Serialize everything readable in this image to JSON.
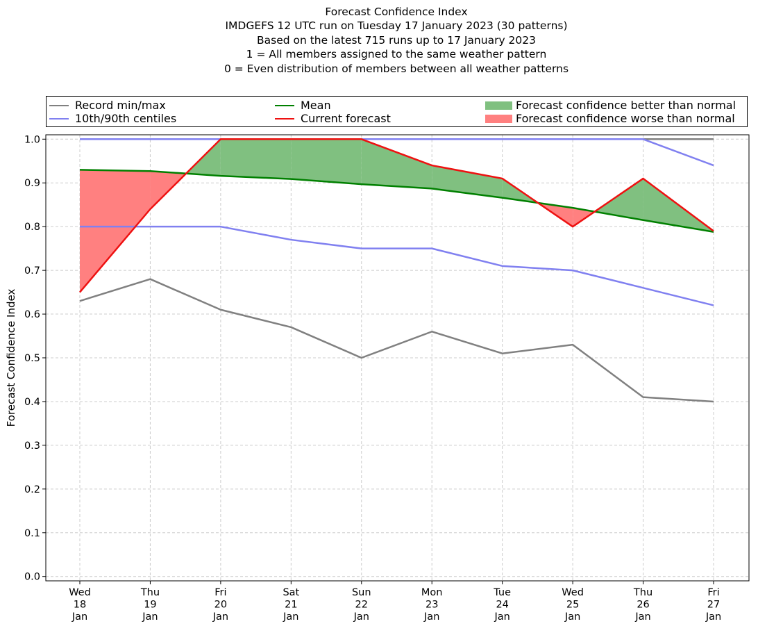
{
  "chart_data": {
    "type": "line",
    "title_lines": [
      "Forecast Confidence Index",
      "IMDGEFS 12 UTC run on Tuesday 17 January 2023 (30 patterns)",
      "Based on the latest 715 runs up to 17 January 2023",
      "1 = All members assigned to the same weather pattern",
      "0 = Even distribution of members between all weather patterns"
    ],
    "ylabel": "Forecast Confidence Index",
    "ylim": [
      -0.01,
      1.01
    ],
    "yticks": [
      "0.0",
      "0.1",
      "0.2",
      "0.3",
      "0.4",
      "0.5",
      "0.6",
      "0.7",
      "0.8",
      "0.9",
      "1.0"
    ],
    "grid": true,
    "legend_position": "top, above plot, 3 columns",
    "categories": [
      [
        "Wed",
        "18",
        "Jan"
      ],
      [
        "Thu",
        "19",
        "Jan"
      ],
      [
        "Fri",
        "20",
        "Jan"
      ],
      [
        "Sat",
        "21",
        "Jan"
      ],
      [
        "Sun",
        "22",
        "Jan"
      ],
      [
        "Mon",
        "23",
        "Jan"
      ],
      [
        "Tue",
        "24",
        "Jan"
      ],
      [
        "Wed",
        "25",
        "Jan"
      ],
      [
        "Thu",
        "26",
        "Jan"
      ],
      [
        "Fri",
        "27",
        "Jan"
      ]
    ],
    "series": {
      "record_min": [
        0.63,
        0.68,
        0.61,
        0.57,
        0.5,
        0.56,
        0.51,
        0.53,
        0.41,
        0.4
      ],
      "record_max": [
        1.0,
        1.0,
        1.0,
        1.0,
        1.0,
        1.0,
        1.0,
        1.0,
        1.0,
        1.0
      ],
      "p10": [
        0.8,
        0.8,
        0.8,
        0.77,
        0.75,
        0.75,
        0.71,
        0.7,
        0.66,
        0.62
      ],
      "p90": [
        1.0,
        1.0,
        1.0,
        1.0,
        1.0,
        1.0,
        1.0,
        1.0,
        1.0,
        0.94
      ],
      "mean": [
        0.93,
        0.927,
        0.916,
        0.909,
        0.897,
        0.887,
        0.866,
        0.843,
        0.815,
        0.788
      ],
      "current_forecast": [
        0.65,
        0.84,
        1.0,
        1.0,
        1.0,
        0.94,
        0.91,
        0.8,
        0.91,
        0.79
      ]
    },
    "legend": {
      "record": "Record min/max",
      "centiles": "10th/90th centiles",
      "mean": "Mean",
      "current": "Current forecast",
      "better": "Forecast confidence better than normal",
      "worse": "Forecast confidence worse than normal"
    },
    "colors": {
      "record": "#808080",
      "centiles": "#8080f0",
      "mean": "#008000",
      "current": "#ee1111",
      "better": "#80c080",
      "worse": "#ff8080",
      "grid": "#cccccc"
    }
  }
}
